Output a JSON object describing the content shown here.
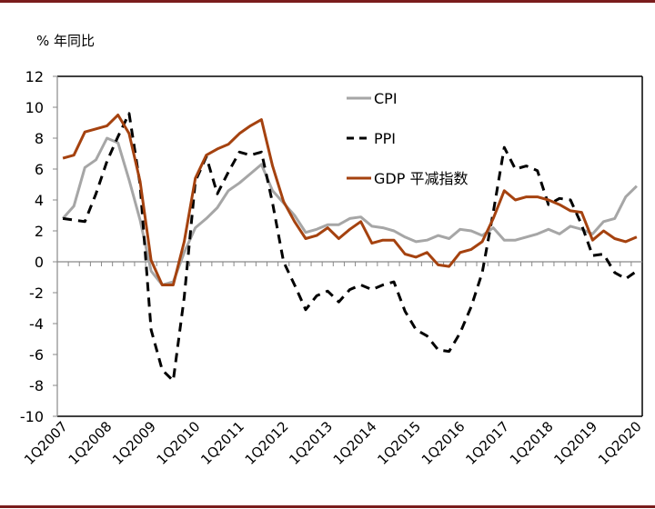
{
  "chart_data": {
    "type": "line",
    "title": "",
    "ylabel": "% 年同比",
    "xlabel": "",
    "ylim": [
      -10,
      12
    ],
    "yticks": [
      12,
      10,
      8,
      6,
      4,
      2,
      0,
      -2,
      -4,
      -6,
      -8,
      -10
    ],
    "x_start": "1Q2007",
    "x_end": "1Q2020",
    "xtick_labels": [
      "1Q2007",
      "1Q2008",
      "1Q2009",
      "1Q2010",
      "1Q2011",
      "1Q2012",
      "1Q2013",
      "1Q2014",
      "1Q2015",
      "1Q2016",
      "1Q2017",
      "1Q2018",
      "1Q2019",
      "1Q2020"
    ],
    "legend_position": "top-center",
    "grid": false,
    "series": [
      {
        "name": "CPI",
        "color": "#a6a6a6",
        "style": "solid",
        "values": [
          2.8,
          3.6,
          6.1,
          6.6,
          8.0,
          7.7,
          5.3,
          2.7,
          -0.6,
          -1.5,
          -1.3,
          0.6,
          2.2,
          2.8,
          3.5,
          4.6,
          5.1,
          5.7,
          6.3,
          4.6,
          3.8,
          3.0,
          1.9,
          2.1,
          2.4,
          2.4,
          2.8,
          2.9,
          2.3,
          2.2,
          2.0,
          1.6,
          1.3,
          1.4,
          1.7,
          1.5,
          2.1,
          2.0,
          1.7,
          2.2,
          1.4,
          1.4,
          1.6,
          1.8,
          2.1,
          1.8,
          2.3,
          2.1,
          1.8,
          2.6,
          2.8,
          4.2,
          4.9
        ]
      },
      {
        "name": "PPI",
        "color": "#000000",
        "style": "dashed",
        "values": [
          2.8,
          2.7,
          2.6,
          4.4,
          6.5,
          8.1,
          9.6,
          5.0,
          -4.4,
          -7.0,
          -7.7,
          -2.3,
          5.2,
          6.8,
          4.4,
          5.8,
          7.1,
          6.9,
          7.1,
          3.8,
          0.0,
          -1.5,
          -3.1,
          -2.2,
          -1.9,
          -2.6,
          -1.8,
          -1.5,
          -1.8,
          -1.5,
          -1.3,
          -3.2,
          -4.4,
          -4.8,
          -5.7,
          -5.8,
          -4.6,
          -2.9,
          -0.7,
          3.2,
          7.4,
          6.0,
          6.2,
          5.9,
          3.7,
          4.1,
          4.0,
          2.4,
          0.4,
          0.5,
          -0.7,
          -1.1,
          -0.6
        ]
      },
      {
        "name": "GDP 平减指数",
        "color": "#a5420f",
        "style": "solid",
        "values": [
          6.7,
          6.9,
          8.4,
          8.6,
          8.8,
          9.5,
          8.3,
          5.2,
          0.1,
          -1.5,
          -1.5,
          1.3,
          5.4,
          6.9,
          7.3,
          7.6,
          8.3,
          8.8,
          9.2,
          6.2,
          3.9,
          2.6,
          1.5,
          1.7,
          2.2,
          1.5,
          2.1,
          2.6,
          1.2,
          1.4,
          1.4,
          0.5,
          0.3,
          0.6,
          -0.2,
          -0.3,
          0.6,
          0.8,
          1.3,
          2.8,
          4.6,
          4.0,
          4.2,
          4.2,
          4.0,
          3.7,
          3.3,
          3.2,
          1.4,
          2.0,
          1.5,
          1.3,
          1.6
        ]
      }
    ]
  }
}
